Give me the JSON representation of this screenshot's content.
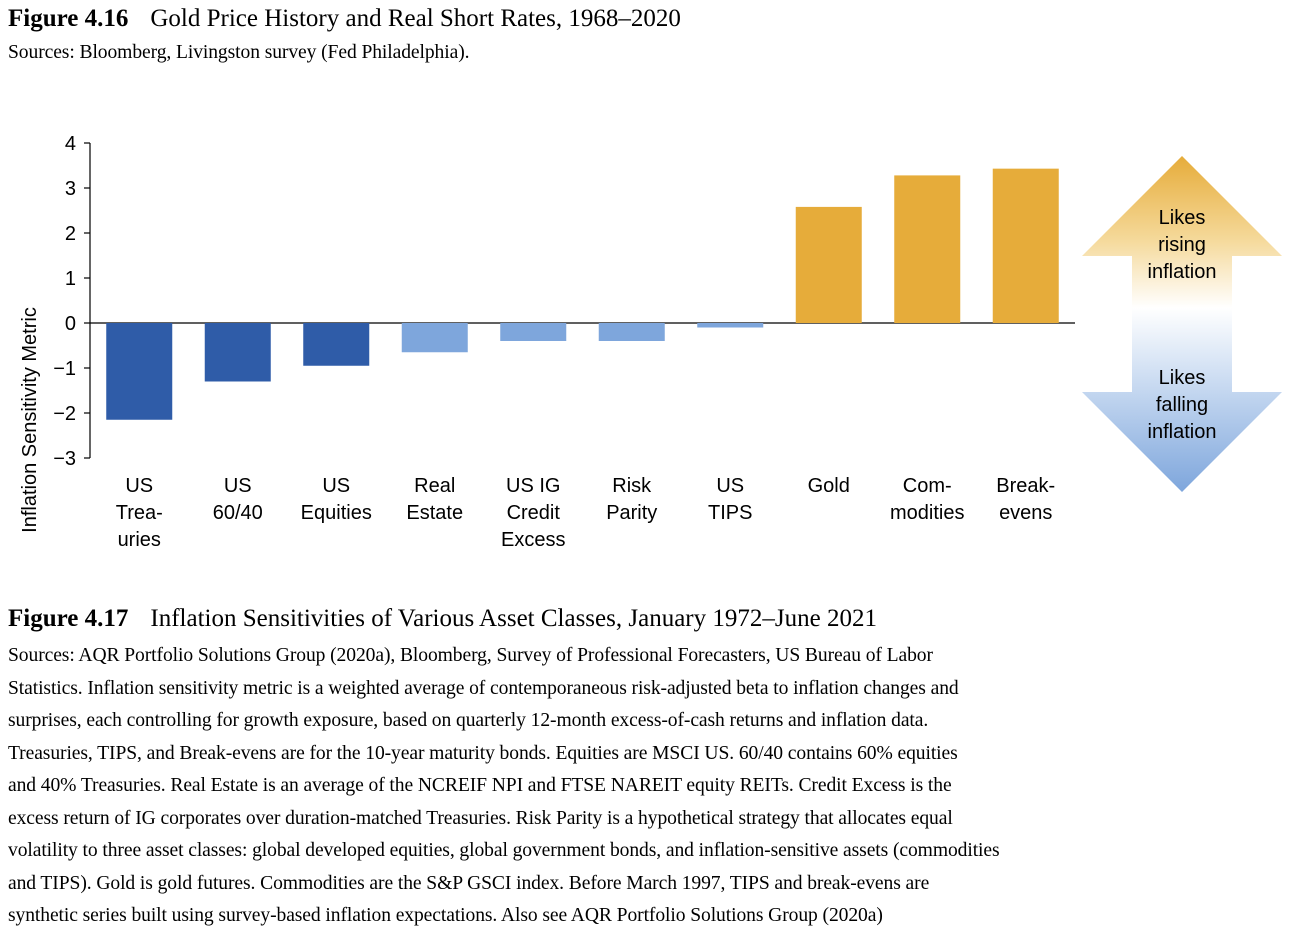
{
  "figure_416": {
    "number": "Figure 4.16",
    "title": "Gold Price History and Real Short Rates, 1968–2020",
    "sources": "Sources: Bloomberg, Livingston survey (Fed Philadelphia)."
  },
  "figure_417": {
    "number": "Figure 4.17",
    "title": "Inflation Sensitivities of Various Asset Classes, January 1972–June 2021",
    "sources_lines": [
      "Sources: AQR Portfolio Solutions Group (2020a), Bloomberg, Survey of Professional Forecasters, US Bureau of Labor",
      "Statistics. Inflation sensitivity metric is a weighted average of contemporaneous risk-adjusted beta to inflation changes and",
      "surprises, each controlling for growth exposure, based on quarterly 12-month excess-of-cash returns and inflation data.",
      "Treasuries, TIPS, and Break-evens are for the 10-year maturity bonds. Equities are MSCI US. 60/40 contains 60% equities",
      "and 40% Treasuries. Real Estate is an average of the NCREIF NPI and FTSE NAREIT equity REITs. Credit Excess is the",
      "excess return of IG corporates over duration-matched Treasuries. Risk Parity is a hypothetical strategy that allocates equal",
      "volatility to three asset classes: global developed equities, global government bonds, and inflation-sensitive assets (commodities",
      "and TIPS). Gold is gold futures. Commodities are the S&P GSCI index. Before March 1997, TIPS and break-evens are",
      "synthetic series built using survey-based inflation expectations. Also see AQR Portfolio Solutions Group (2020a)"
    ]
  },
  "chart_data": {
    "type": "bar",
    "ylabel": "Inflation Sensitivity Metric",
    "ylim": [
      -3,
      4
    ],
    "yticks": [
      4,
      3,
      2,
      1,
      0,
      -1,
      -2,
      -3
    ],
    "ytick_labels": [
      "4",
      "3",
      "2",
      "1",
      "0",
      "−1",
      "−2",
      "−3"
    ],
    "grid": false,
    "categories": [
      {
        "label": [
          "US",
          "Trea-",
          "uries"
        ],
        "value": -2.15,
        "color": "#2f5ca8"
      },
      {
        "label": [
          "US",
          "60/40"
        ],
        "value": -1.3,
        "color": "#2f5ca8"
      },
      {
        "label": [
          "US",
          "Equities"
        ],
        "value": -0.95,
        "color": "#2f5ca8"
      },
      {
        "label": [
          "Real",
          "Estate"
        ],
        "value": -0.65,
        "color": "#7ea6dc"
      },
      {
        "label": [
          "US IG",
          "Credit",
          "Excess"
        ],
        "value": -0.4,
        "color": "#7ea6dc"
      },
      {
        "label": [
          "Risk",
          "Parity"
        ],
        "value": -0.4,
        "color": "#7ea6dc"
      },
      {
        "label": [
          "US",
          "TIPS"
        ],
        "value": -0.1,
        "color": "#7ea6dc"
      },
      {
        "label": [
          "Gold"
        ],
        "value": 2.58,
        "color": "#e6ac3a"
      },
      {
        "label": [
          "Com-",
          "modities"
        ],
        "value": 3.28,
        "color": "#e6ac3a"
      },
      {
        "label": [
          "Break-",
          "evens"
        ],
        "value": 3.43,
        "color": "#e6ac3a"
      }
    ],
    "annotations": {
      "up": {
        "lines": [
          "Likes",
          "rising",
          "inflation"
        ],
        "color": "#e6ac3a"
      },
      "down": {
        "lines": [
          "Likes",
          "falling",
          "inflation"
        ],
        "color": "#7ea6dc"
      }
    }
  }
}
